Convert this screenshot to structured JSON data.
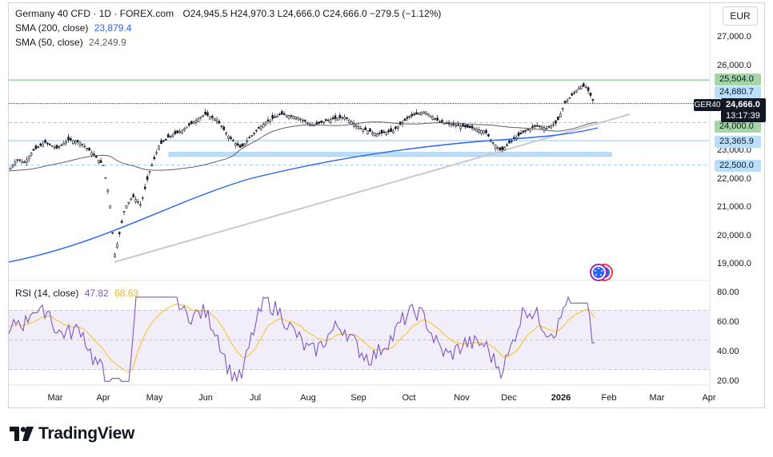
{
  "header": {
    "symbol": "Germany 40 CFD",
    "interval": "1D",
    "source": "FOREX.com",
    "ohlc": "O24,945.5  H24,970.3  L24,666.0  C24,666.0  −279.5 (−1.12%)"
  },
  "indicators": {
    "sma200": {
      "label": "SMA (200, close)",
      "value": "23,879.4",
      "color": "#2962ff"
    },
    "sma50": {
      "label": "SMA (50, close)",
      "value": "24,249.9",
      "color": "#4a4a4a"
    },
    "rsi": {
      "label": "RSI (14, close)",
      "value": "47.82",
      "ma_value": "68.63",
      "color": "#7e57c2",
      "ma_color": "#f5c842"
    }
  },
  "currency": "EUR",
  "symbol_tag": "GER40",
  "price_tag": {
    "price": "24,666.0",
    "countdown": "13:17:39"
  },
  "price_axis": [
    "27,000.0",
    "26,000.0",
    "23,000.0",
    "22,000.0",
    "21,000.0",
    "20,000.0",
    "19,000.0"
  ],
  "rsi_axis": [
    "80.00",
    "60.00",
    "40.00",
    "20.00"
  ],
  "level_badges": [
    {
      "value": "25,504.0",
      "color": "#a5d6a7",
      "price": 25504
    },
    {
      "value": "24,680.7",
      "color": "#bbdefb",
      "price": 24680.7
    },
    {
      "value": "24,000.0",
      "color": "#a5d6a7",
      "price": 24000
    },
    {
      "value": "23,365.9",
      "color": "#bbdefb",
      "price": 23365.9
    },
    {
      "value": "22,500.0",
      "color": "#bbdefb",
      "price": 22500
    }
  ],
  "x_axis": [
    "Mar",
    "Apr",
    "May",
    "Jun",
    "Jul",
    "Aug",
    "Sep",
    "Oct",
    "Nov",
    "Dec",
    "2026",
    "Feb",
    "Mar",
    "Apr"
  ],
  "brand": "TradingView",
  "icons": {
    "event": "economic-event-icon",
    "logo": "tradingview-logo-icon"
  },
  "colors": {
    "up": "#089981",
    "down": "#f23645",
    "candle": "#131722",
    "trendline": "#d1d4dc"
  }
}
